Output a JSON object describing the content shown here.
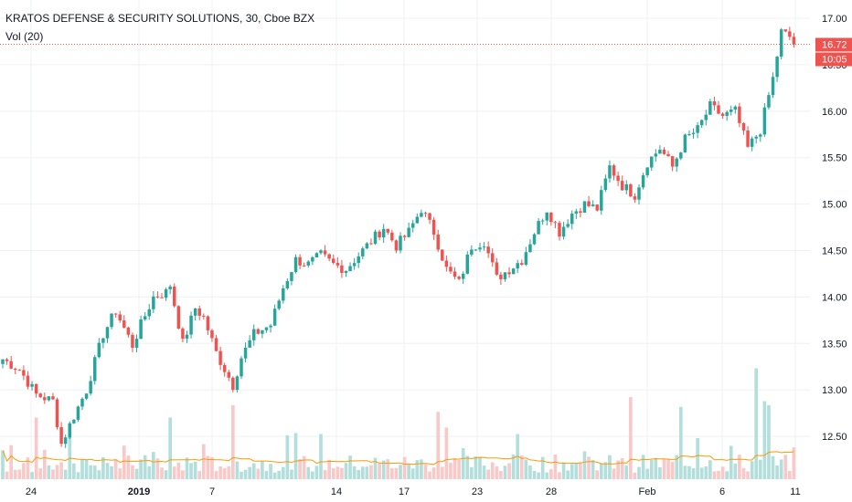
{
  "header": {
    "symbol_title": "KRATOS DEFENSE & SECURITY SOLUTIONS, 30, Cboe BZX",
    "indicator_label": "Vol (20)"
  },
  "colors": {
    "up": "#26a69a",
    "down": "#ef5350",
    "up_volume": "#b2dfdb",
    "down_volume": "#f7c9c8",
    "volume_ma": "#ff9800",
    "grid": "#eef0f3",
    "price_line": "#ef5350"
  },
  "price_tag": {
    "price": "16.72",
    "countdown": "10:05"
  },
  "chart_data": {
    "type": "candlestick",
    "title": "KRATOS DEFENSE & SECURITY SOLUTIONS, 30, Cboe BZX",
    "interval": "30",
    "exchange": "Cboe BZX",
    "y_ticks": [
      "12.50",
      "13.00",
      "13.50",
      "14.00",
      "14.50",
      "15.00",
      "15.50",
      "16.00",
      "16.50",
      "17.00"
    ],
    "y_range": [
      12.0,
      17.17
    ],
    "x_ticks": [
      {
        "label": "24",
        "bold": false
      },
      {
        "label": "2019",
        "bold": true
      },
      {
        "label": "7",
        "bold": false
      },
      {
        "label": "14",
        "bold": false
      },
      {
        "label": "17",
        "bold": false
      },
      {
        "label": "23",
        "bold": false
      },
      {
        "label": "28",
        "bold": false
      },
      {
        "label": "Feb",
        "bold": false
      },
      {
        "label": "6",
        "bold": false
      },
      {
        "label": "11",
        "bold": false
      }
    ],
    "last_price": 16.72,
    "volume_ma_length": 20,
    "grid": true,
    "close_path": [
      [
        0,
        13.33
      ],
      [
        4,
        13.22
      ],
      [
        8,
        12.95
      ],
      [
        12,
        12.88
      ],
      [
        14,
        12.42
      ],
      [
        17,
        12.72
      ],
      [
        20,
        13.0
      ],
      [
        24,
        13.6
      ],
      [
        27,
        13.85
      ],
      [
        31,
        13.48
      ],
      [
        33,
        13.7
      ],
      [
        36,
        14.0
      ],
      [
        39,
        14.05
      ],
      [
        40,
        14.13
      ],
      [
        43,
        13.5
      ],
      [
        46,
        13.88
      ],
      [
        48,
        13.78
      ],
      [
        51,
        13.4
      ],
      [
        55,
        13.05
      ],
      [
        57,
        13.35
      ],
      [
        60,
        13.6
      ],
      [
        64,
        13.7
      ],
      [
        67,
        14.1
      ],
      [
        70,
        14.4
      ],
      [
        73,
        14.35
      ],
      [
        76,
        14.45
      ],
      [
        79,
        14.35
      ],
      [
        82,
        14.3
      ],
      [
        85,
        14.45
      ],
      [
        88,
        14.6
      ],
      [
        91,
        14.75
      ],
      [
        94,
        14.55
      ],
      [
        97,
        14.7
      ],
      [
        100,
        14.95
      ],
      [
        103,
        14.7
      ],
      [
        106,
        14.3
      ],
      [
        109,
        14.15
      ],
      [
        112,
        14.55
      ],
      [
        115,
        14.6
      ],
      [
        118,
        14.2
      ],
      [
        121,
        14.3
      ],
      [
        124,
        14.4
      ],
      [
        127,
        14.7
      ],
      [
        130,
        14.95
      ],
      [
        133,
        14.7
      ],
      [
        136,
        14.9
      ],
      [
        139,
        15.0
      ],
      [
        142,
        14.95
      ],
      [
        145,
        15.4
      ],
      [
        148,
        15.2
      ],
      [
        151,
        15.1
      ],
      [
        154,
        15.45
      ],
      [
        157,
        15.6
      ],
      [
        160,
        15.4
      ],
      [
        163,
        15.7
      ],
      [
        166,
        15.8
      ],
      [
        169,
        16.05
      ],
      [
        172,
        15.95
      ],
      [
        175,
        16.0
      ],
      [
        178,
        15.6
      ],
      [
        181,
        15.8
      ],
      [
        184,
        16.35
      ],
      [
        186,
        16.85
      ],
      [
        188,
        16.8
      ],
      [
        189,
        16.72
      ]
    ],
    "volume_spikes": [
      [
        0,
        0.35
      ],
      [
        8,
        0.75
      ],
      [
        16,
        0.68
      ],
      [
        40,
        0.75
      ],
      [
        55,
        0.9
      ],
      [
        76,
        0.55
      ],
      [
        104,
        0.82
      ],
      [
        106,
        0.63
      ],
      [
        123,
        0.55
      ],
      [
        150,
        1.0
      ],
      [
        162,
        0.88
      ],
      [
        166,
        0.5
      ],
      [
        180,
        1.35
      ],
      [
        182,
        0.95
      ],
      [
        183,
        0.9
      ]
    ]
  }
}
